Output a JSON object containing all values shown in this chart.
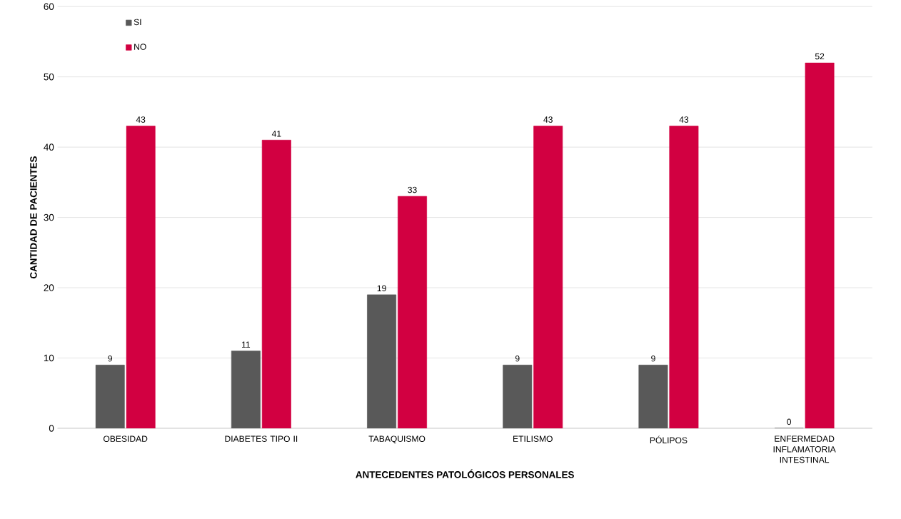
{
  "chart_data": {
    "type": "bar",
    "xlabel": "ANTECEDENTES PATOLÓGICOS PERSONALES",
    "ylabel": "CANTIDAD DE PACIENTES",
    "categories": [
      "OBESIDAD",
      "DIABETES TIPO II",
      "TABAQUISMO",
      "ETILISMO",
      "PÓLIPOS",
      "ENFERMEDAD INFLAMATORIA INTESTINAL"
    ],
    "series": [
      {
        "name": "SI",
        "color": "#595959",
        "values": [
          9,
          11,
          19,
          9,
          9,
          0
        ]
      },
      {
        "name": "NO",
        "color": "#d20041",
        "values": [
          43,
          41,
          33,
          43,
          43,
          52
        ]
      }
    ],
    "ylim": [
      0,
      60
    ],
    "yticks": [
      0,
      10,
      20,
      30,
      40,
      50,
      60
    ],
    "grid": "y",
    "legend": "top left",
    "data_labels": true
  }
}
